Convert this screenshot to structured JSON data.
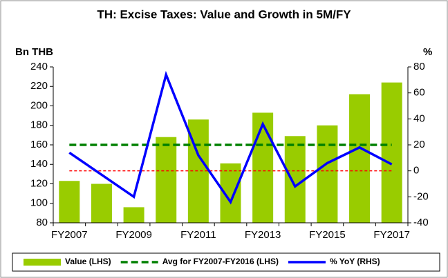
{
  "chart_data": {
    "type": "bar",
    "title": "TH: Excise Taxes: Value and Growth in 5M/FY",
    "y_label": "Bn THB",
    "y2_label": "%",
    "categories": [
      "FY2007",
      null,
      "FY2009",
      null,
      "FY2011",
      null,
      "FY2013",
      null,
      "FY2015",
      null,
      "FY2017"
    ],
    "series": [
      {
        "name": "Value (LHS)",
        "type": "bar",
        "color": "#99cc00",
        "values": [
          123,
          120,
          96,
          168,
          186,
          141,
          193,
          169,
          180,
          212,
          224
        ]
      },
      {
        "name": "Avg for FY2007-FY2016 (LHS)",
        "type": "line",
        "dashed": true,
        "color": "#008000",
        "values": [
          160,
          160,
          160,
          160,
          160,
          160,
          160,
          160,
          160,
          160,
          160
        ]
      },
      {
        "name": "% YoY (RHS)",
        "type": "line",
        "axis": "y2",
        "color": "#0000ff",
        "values": [
          14,
          -3,
          -20,
          74,
          12,
          -24,
          36,
          -12,
          6,
          18,
          5
        ]
      }
    ],
    "reference_lines": [
      {
        "axis": "y2",
        "value": 0,
        "color": "#ff0000"
      }
    ],
    "ylim": [
      80,
      240
    ],
    "yticks": [
      80,
      100,
      120,
      140,
      160,
      180,
      200,
      220,
      240
    ],
    "y2lim": [
      -40,
      80
    ],
    "y2ticks": [
      -40,
      -20,
      0,
      20,
      40,
      60,
      80
    ],
    "grid": false
  }
}
